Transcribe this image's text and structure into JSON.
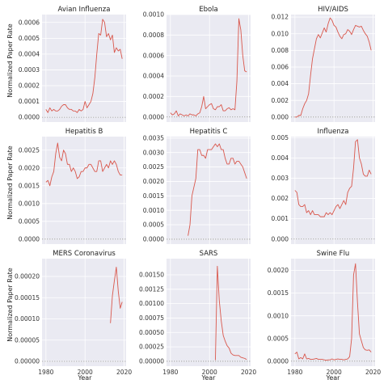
{
  "figure": {
    "ylabel": "Normalized Paper Rate",
    "xlabel": "Year"
  },
  "colors": {
    "line": "#d9574c",
    "background": "#eaeaf2",
    "grid": "#ffffff",
    "zero_line": "#9a9a9a"
  },
  "chart_data": [
    {
      "type": "line",
      "title": "Avian Influenza",
      "xlim": [
        1978,
        2021
      ],
      "ylim": [
        -3e-05,
        0.00065
      ],
      "xticks": [
        1980,
        2000,
        2020
      ],
      "yticks": [
        0.0,
        0.0001,
        0.0002,
        0.0003,
        0.0004,
        0.0005,
        0.0006
      ],
      "ytick_labels": [
        "0.0000",
        "0.0001",
        "0.0002",
        "0.0003",
        "0.0004",
        "0.0005",
        "0.0006"
      ],
      "show_xtick_labels": false,
      "show_ylabel": true,
      "show_xlabel": false,
      "x": [
        1980,
        1981,
        1982,
        1983,
        1984,
        1985,
        1986,
        1987,
        1988,
        1989,
        1990,
        1991,
        1992,
        1993,
        1994,
        1995,
        1996,
        1997,
        1998,
        1999,
        2000,
        2001,
        2002,
        2003,
        2004,
        2005,
        2006,
        2007,
        2008,
        2009,
        2010,
        2011,
        2012,
        2013,
        2014,
        2015,
        2016,
        2017,
        2018,
        2019
      ],
      "y": [
        5e-05,
        3e-05,
        6e-05,
        4e-05,
        5e-05,
        4e-05,
        4e-05,
        5e-05,
        7e-05,
        8e-05,
        8e-05,
        6e-05,
        5e-05,
        5e-05,
        4e-05,
        4e-05,
        3e-05,
        5e-05,
        4e-05,
        5e-05,
        0.0001,
        6e-05,
        8e-05,
        0.0001,
        0.00015,
        0.00025,
        0.0004,
        0.00053,
        0.00052,
        0.00062,
        0.0006,
        0.00051,
        0.00053,
        0.00049,
        0.00052,
        0.00041,
        0.00044,
        0.00042,
        0.00043,
        0.00037
      ]
    },
    {
      "type": "line",
      "title": "Ebola",
      "xlim": [
        1978,
        2021
      ],
      "ylim": [
        -5e-05,
        0.001
      ],
      "xticks": [
        1980,
        2000,
        2020
      ],
      "yticks": [
        0.0,
        0.0002,
        0.0004,
        0.0006,
        0.0008,
        0.001
      ],
      "ytick_labels": [
        "0.0000",
        "0.0002",
        "0.0004",
        "0.0006",
        "0.0008",
        "0.0010"
      ],
      "show_xtick_labels": false,
      "show_ylabel": false,
      "show_xlabel": false,
      "x": [
        1980,
        1981,
        1982,
        1983,
        1984,
        1985,
        1986,
        1987,
        1988,
        1989,
        1990,
        1991,
        1992,
        1993,
        1994,
        1995,
        1996,
        1997,
        1998,
        1999,
        2000,
        2001,
        2002,
        2003,
        2004,
        2005,
        2006,
        2007,
        2008,
        2009,
        2010,
        2011,
        2012,
        2013,
        2014,
        2015,
        2016,
        2017,
        2018,
        2019
      ],
      "y": [
        4e-05,
        2e-05,
        3e-05,
        6e-05,
        1e-05,
        3e-05,
        2e-05,
        1e-05,
        2e-05,
        1e-05,
        3e-05,
        2e-05,
        2e-05,
        1e-05,
        3e-05,
        4e-05,
        0.0001,
        0.0002,
        8e-05,
        0.0001,
        0.00012,
        0.00013,
        8e-05,
        7e-05,
        0.0001,
        0.0001,
        0.00012,
        6e-05,
        6e-05,
        8e-05,
        9e-05,
        7e-05,
        8e-05,
        7e-05,
        0.00035,
        0.00096,
        0.00085,
        0.0006,
        0.00045,
        0.00044
      ]
    },
    {
      "type": "line",
      "title": "HIV/AIDS",
      "xlim": [
        1978,
        2021
      ],
      "ylim": [
        -0.0006,
        0.0123
      ],
      "xticks": [
        1980,
        2000,
        2020
      ],
      "yticks": [
        0.0,
        0.002,
        0.004,
        0.006,
        0.008,
        0.01,
        0.012
      ],
      "ytick_labels": [
        "0.000",
        "0.002",
        "0.004",
        "0.006",
        "0.008",
        "0.010",
        "0.012"
      ],
      "show_xtick_labels": false,
      "show_ylabel": false,
      "show_xlabel": false,
      "x": [
        1980,
        1981,
        1982,
        1983,
        1984,
        1985,
        1986,
        1987,
        1988,
        1989,
        1990,
        1991,
        1992,
        1993,
        1994,
        1995,
        1996,
        1997,
        1998,
        1999,
        2000,
        2001,
        2002,
        2003,
        2004,
        2005,
        2006,
        2007,
        2008,
        2009,
        2010,
        2011,
        2012,
        2013,
        2014,
        2015,
        2016,
        2017,
        2018,
        2019
      ],
      "y": [
        0.0,
        0.0,
        0.0002,
        0.0002,
        0.001,
        0.0016,
        0.002,
        0.0028,
        0.005,
        0.007,
        0.0082,
        0.0094,
        0.0099,
        0.0095,
        0.0101,
        0.0107,
        0.0102,
        0.0112,
        0.0119,
        0.0116,
        0.011,
        0.0108,
        0.0102,
        0.0097,
        0.0094,
        0.0099,
        0.01,
        0.0105,
        0.0103,
        0.0099,
        0.0105,
        0.011,
        0.0109,
        0.0108,
        0.0109,
        0.0104,
        0.01,
        0.0097,
        0.009,
        0.008
      ]
    },
    {
      "type": "line",
      "title": "Hepatitis B",
      "xlim": [
        1978,
        2021
      ],
      "ylim": [
        -0.00014,
        0.00288
      ],
      "xticks": [
        1980,
        2000,
        2020
      ],
      "yticks": [
        0.0,
        0.0005,
        0.001,
        0.0015,
        0.002,
        0.0025
      ],
      "ytick_labels": [
        "0.0000",
        "0.0005",
        "0.0010",
        "0.0015",
        "0.0020",
        "0.0025"
      ],
      "show_xtick_labels": false,
      "show_ylabel": true,
      "show_xlabel": false,
      "x": [
        1980,
        1981,
        1982,
        1983,
        1984,
        1985,
        1986,
        1987,
        1988,
        1989,
        1990,
        1991,
        1992,
        1993,
        1994,
        1995,
        1996,
        1997,
        1998,
        1999,
        2000,
        2001,
        2002,
        2003,
        2004,
        2005,
        2006,
        2007,
        2008,
        2009,
        2010,
        2011,
        2012,
        2013,
        2014,
        2015,
        2016,
        2017,
        2018,
        2019
      ],
      "y": [
        0.0016,
        0.00165,
        0.0015,
        0.00175,
        0.0019,
        0.0024,
        0.0027,
        0.0023,
        0.0022,
        0.0025,
        0.0024,
        0.0021,
        0.0021,
        0.0019,
        0.002,
        0.0019,
        0.0017,
        0.00175,
        0.0019,
        0.0019,
        0.002,
        0.002,
        0.0021,
        0.0021,
        0.002,
        0.0019,
        0.0019,
        0.0022,
        0.0022,
        0.0019,
        0.002,
        0.0021,
        0.002,
        0.0022,
        0.0021,
        0.0022,
        0.0021,
        0.0019,
        0.0018,
        0.0018
      ]
    },
    {
      "type": "line",
      "title": "Hepatitis C",
      "xlim": [
        1978,
        2021
      ],
      "ylim": [
        -0.00017,
        0.00355
      ],
      "xticks": [
        1980,
        2000,
        2020
      ],
      "yticks": [
        0.0,
        0.0005,
        0.001,
        0.0015,
        0.002,
        0.0025,
        0.003,
        0.0035
      ],
      "ytick_labels": [
        "0.0000",
        "0.0005",
        "0.0010",
        "0.0015",
        "0.0020",
        "0.0025",
        "0.0030",
        "0.0035"
      ],
      "show_xtick_labels": false,
      "show_ylabel": false,
      "show_xlabel": false,
      "x": [
        1989,
        1990,
        1991,
        1992,
        1993,
        1994,
        1995,
        1996,
        1997,
        1998,
        1999,
        2000,
        2001,
        2002,
        2003,
        2004,
        2005,
        2006,
        2007,
        2008,
        2009,
        2010,
        2011,
        2012,
        2013,
        2014,
        2015,
        2016,
        2017,
        2018,
        2019
      ],
      "y": [
        0.00012,
        0.0005,
        0.0015,
        0.0018,
        0.0021,
        0.0031,
        0.0031,
        0.0029,
        0.0029,
        0.0028,
        0.0031,
        0.0031,
        0.0031,
        0.0032,
        0.0033,
        0.0032,
        0.0033,
        0.0031,
        0.0031,
        0.0028,
        0.0026,
        0.0026,
        0.0028,
        0.0028,
        0.0026,
        0.0027,
        0.0027,
        0.0026,
        0.0025,
        0.0023,
        0.0021
      ]
    },
    {
      "type": "line",
      "title": "Influenza",
      "xlim": [
        1978,
        2021
      ],
      "ylim": [
        -0.00025,
        0.00505
      ],
      "xticks": [
        1980,
        2000,
        2020
      ],
      "yticks": [
        0.0,
        0.001,
        0.002,
        0.003,
        0.004,
        0.005
      ],
      "ytick_labels": [
        "0.000",
        "0.001",
        "0.002",
        "0.003",
        "0.004",
        "0.005"
      ],
      "show_xtick_labels": false,
      "show_ylabel": false,
      "show_xlabel": false,
      "x": [
        1980,
        1981,
        1982,
        1983,
        1984,
        1985,
        1986,
        1987,
        1988,
        1989,
        1990,
        1991,
        1992,
        1993,
        1994,
        1995,
        1996,
        1997,
        1998,
        1999,
        2000,
        2001,
        2002,
        2003,
        2004,
        2005,
        2006,
        2007,
        2008,
        2009,
        2010,
        2011,
        2012,
        2013,
        2014,
        2015,
        2016,
        2017,
        2018,
        2019
      ],
      "y": [
        0.0024,
        0.0023,
        0.0017,
        0.0016,
        0.0016,
        0.0017,
        0.0013,
        0.0014,
        0.0012,
        0.0014,
        0.0012,
        0.0012,
        0.0012,
        0.0011,
        0.0011,
        0.0011,
        0.0013,
        0.0012,
        0.0013,
        0.0012,
        0.0014,
        0.0016,
        0.0017,
        0.0015,
        0.0017,
        0.0019,
        0.0017,
        0.0023,
        0.0025,
        0.0026,
        0.0035,
        0.0048,
        0.0049,
        0.004,
        0.0037,
        0.0032,
        0.0031,
        0.0031,
        0.0034,
        0.0032
      ]
    },
    {
      "type": "line",
      "title": "MERS Coronavirus",
      "xlim": [
        1978,
        2021
      ],
      "ylim": [
        -1.15e-05,
        0.000242
      ],
      "xticks": [
        1980,
        2000,
        2020
      ],
      "xtick_labels": [
        "1980",
        "2000",
        "2020"
      ],
      "yticks": [
        0.0,
        5e-05,
        0.0001,
        0.00015,
        0.0002
      ],
      "ytick_labels": [
        "0.00000",
        "0.00005",
        "0.00010",
        "0.00015",
        "0.00020"
      ],
      "show_xtick_labels": true,
      "show_ylabel": true,
      "show_xlabel": true,
      "x": [
        2013,
        2014,
        2015,
        2016,
        2017,
        2018,
        2019
      ],
      "y": [
        9e-05,
        0.000155,
        0.00019,
        0.000222,
        0.000165,
        0.000125,
        0.00014
      ]
    },
    {
      "type": "line",
      "title": "SARS",
      "xlim": [
        1978,
        2021
      ],
      "ylim": [
        -8.5e-05,
        0.00178
      ],
      "xticks": [
        1980,
        2000,
        2020
      ],
      "xtick_labels": [
        "1980",
        "2000",
        "2020"
      ],
      "yticks": [
        0.0,
        0.00025,
        0.0005,
        0.00075,
        0.001,
        0.00125,
        0.0015
      ],
      "ytick_labels": [
        "0.00000",
        "0.00025",
        "0.00050",
        "0.00075",
        "0.00100",
        "0.00125",
        "0.00150"
      ],
      "show_xtick_labels": true,
      "show_ylabel": false,
      "show_xlabel": true,
      "x": [
        2003,
        2004,
        2005,
        2006,
        2007,
        2008,
        2009,
        2010,
        2011,
        2012,
        2013,
        2014,
        2015,
        2016,
        2017,
        2018,
        2019
      ],
      "y": [
        2e-05,
        0.00165,
        0.00105,
        0.0007,
        0.00045,
        0.00035,
        0.00027,
        0.00023,
        0.00014,
        0.00011,
        0.0001,
        0.0001,
        0.0001,
        7e-05,
        6e-05,
        5e-05,
        3e-05
      ]
    },
    {
      "type": "line",
      "title": "Swine Flu",
      "xlim": [
        1978,
        2021
      ],
      "ylim": [
        -0.00011,
        0.00226
      ],
      "xticks": [
        1980,
        2000,
        2020
      ],
      "xtick_labels": [
        "1980",
        "2000",
        "2020"
      ],
      "yticks": [
        0.0,
        0.0005,
        0.001,
        0.0015,
        0.002
      ],
      "ytick_labels": [
        "0.0000",
        "0.0005",
        "0.0010",
        "0.0015",
        "0.0020"
      ],
      "show_xtick_labels": true,
      "show_ylabel": false,
      "show_xlabel": true,
      "x": [
        1980,
        1981,
        1982,
        1983,
        1984,
        1985,
        1986,
        1987,
        1988,
        1989,
        1990,
        1991,
        1992,
        1993,
        1994,
        1995,
        1996,
        1997,
        1998,
        1999,
        2000,
        2001,
        2002,
        2003,
        2004,
        2005,
        2006,
        2007,
        2008,
        2009,
        2010,
        2011,
        2012,
        2013,
        2014,
        2015,
        2016,
        2017,
        2018,
        2019
      ],
      "y": [
        0.00016,
        0.0002,
        5e-05,
        8e-05,
        5e-05,
        0.00016,
        5e-05,
        6e-05,
        4e-05,
        4e-05,
        5e-05,
        6e-05,
        4e-05,
        4e-05,
        4e-05,
        3e-05,
        2e-05,
        3e-05,
        3e-05,
        5e-05,
        3e-05,
        4e-05,
        5e-05,
        4e-05,
        4e-05,
        3e-05,
        4e-05,
        5e-05,
        0.0001,
        0.0005,
        0.0019,
        0.00215,
        0.0013,
        0.0006,
        0.00045,
        0.0003,
        0.00025,
        0.00024,
        0.00025,
        0.0002
      ]
    }
  ]
}
